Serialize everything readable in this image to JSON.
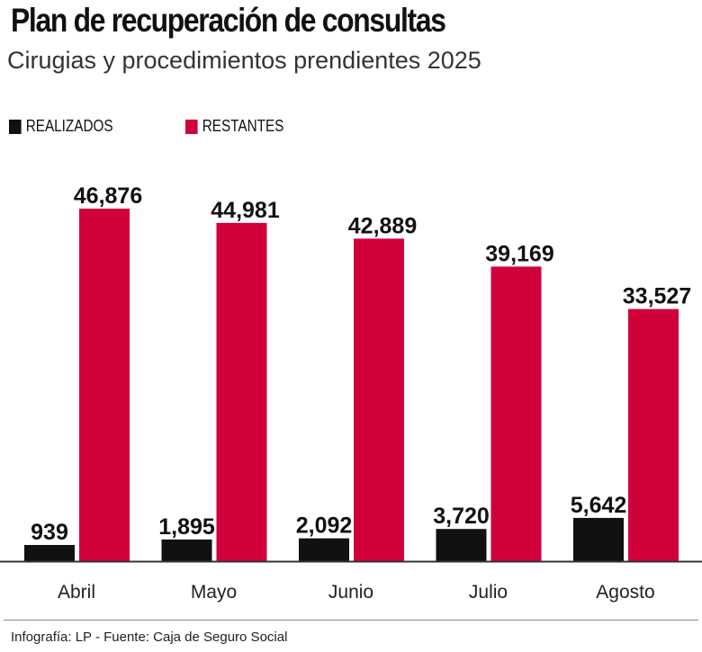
{
  "title": "Plan de recuperación de consultas",
  "subtitle": "Cirugias y procedimientos prendientes 2025",
  "source": "Infografía: LP - Fuente: Caja de Seguro Social",
  "chart_data": {
    "type": "bar",
    "title": "Plan de recuperación de consultas",
    "subtitle": "Cirugias y procedimientos prendientes 2025",
    "categories": [
      "Abril",
      "Mayo",
      "Junio",
      "Julio",
      "Agosto"
    ],
    "series": [
      {
        "name": "REALIZADOS",
        "color": "#111111",
        "values": [
          939,
          1895,
          2092,
          3720,
          5642
        ],
        "labels": [
          "939",
          "1,895",
          "2,092",
          "3,720",
          "5,642"
        ]
      },
      {
        "name": "RESTANTES",
        "color": "#d0003a",
        "values": [
          46876,
          44981,
          42889,
          39169,
          33527
        ],
        "labels": [
          "46,876",
          "44,981",
          "42,889",
          "39,169",
          "33,527"
        ]
      }
    ],
    "legend": "top-left",
    "grid": false
  }
}
